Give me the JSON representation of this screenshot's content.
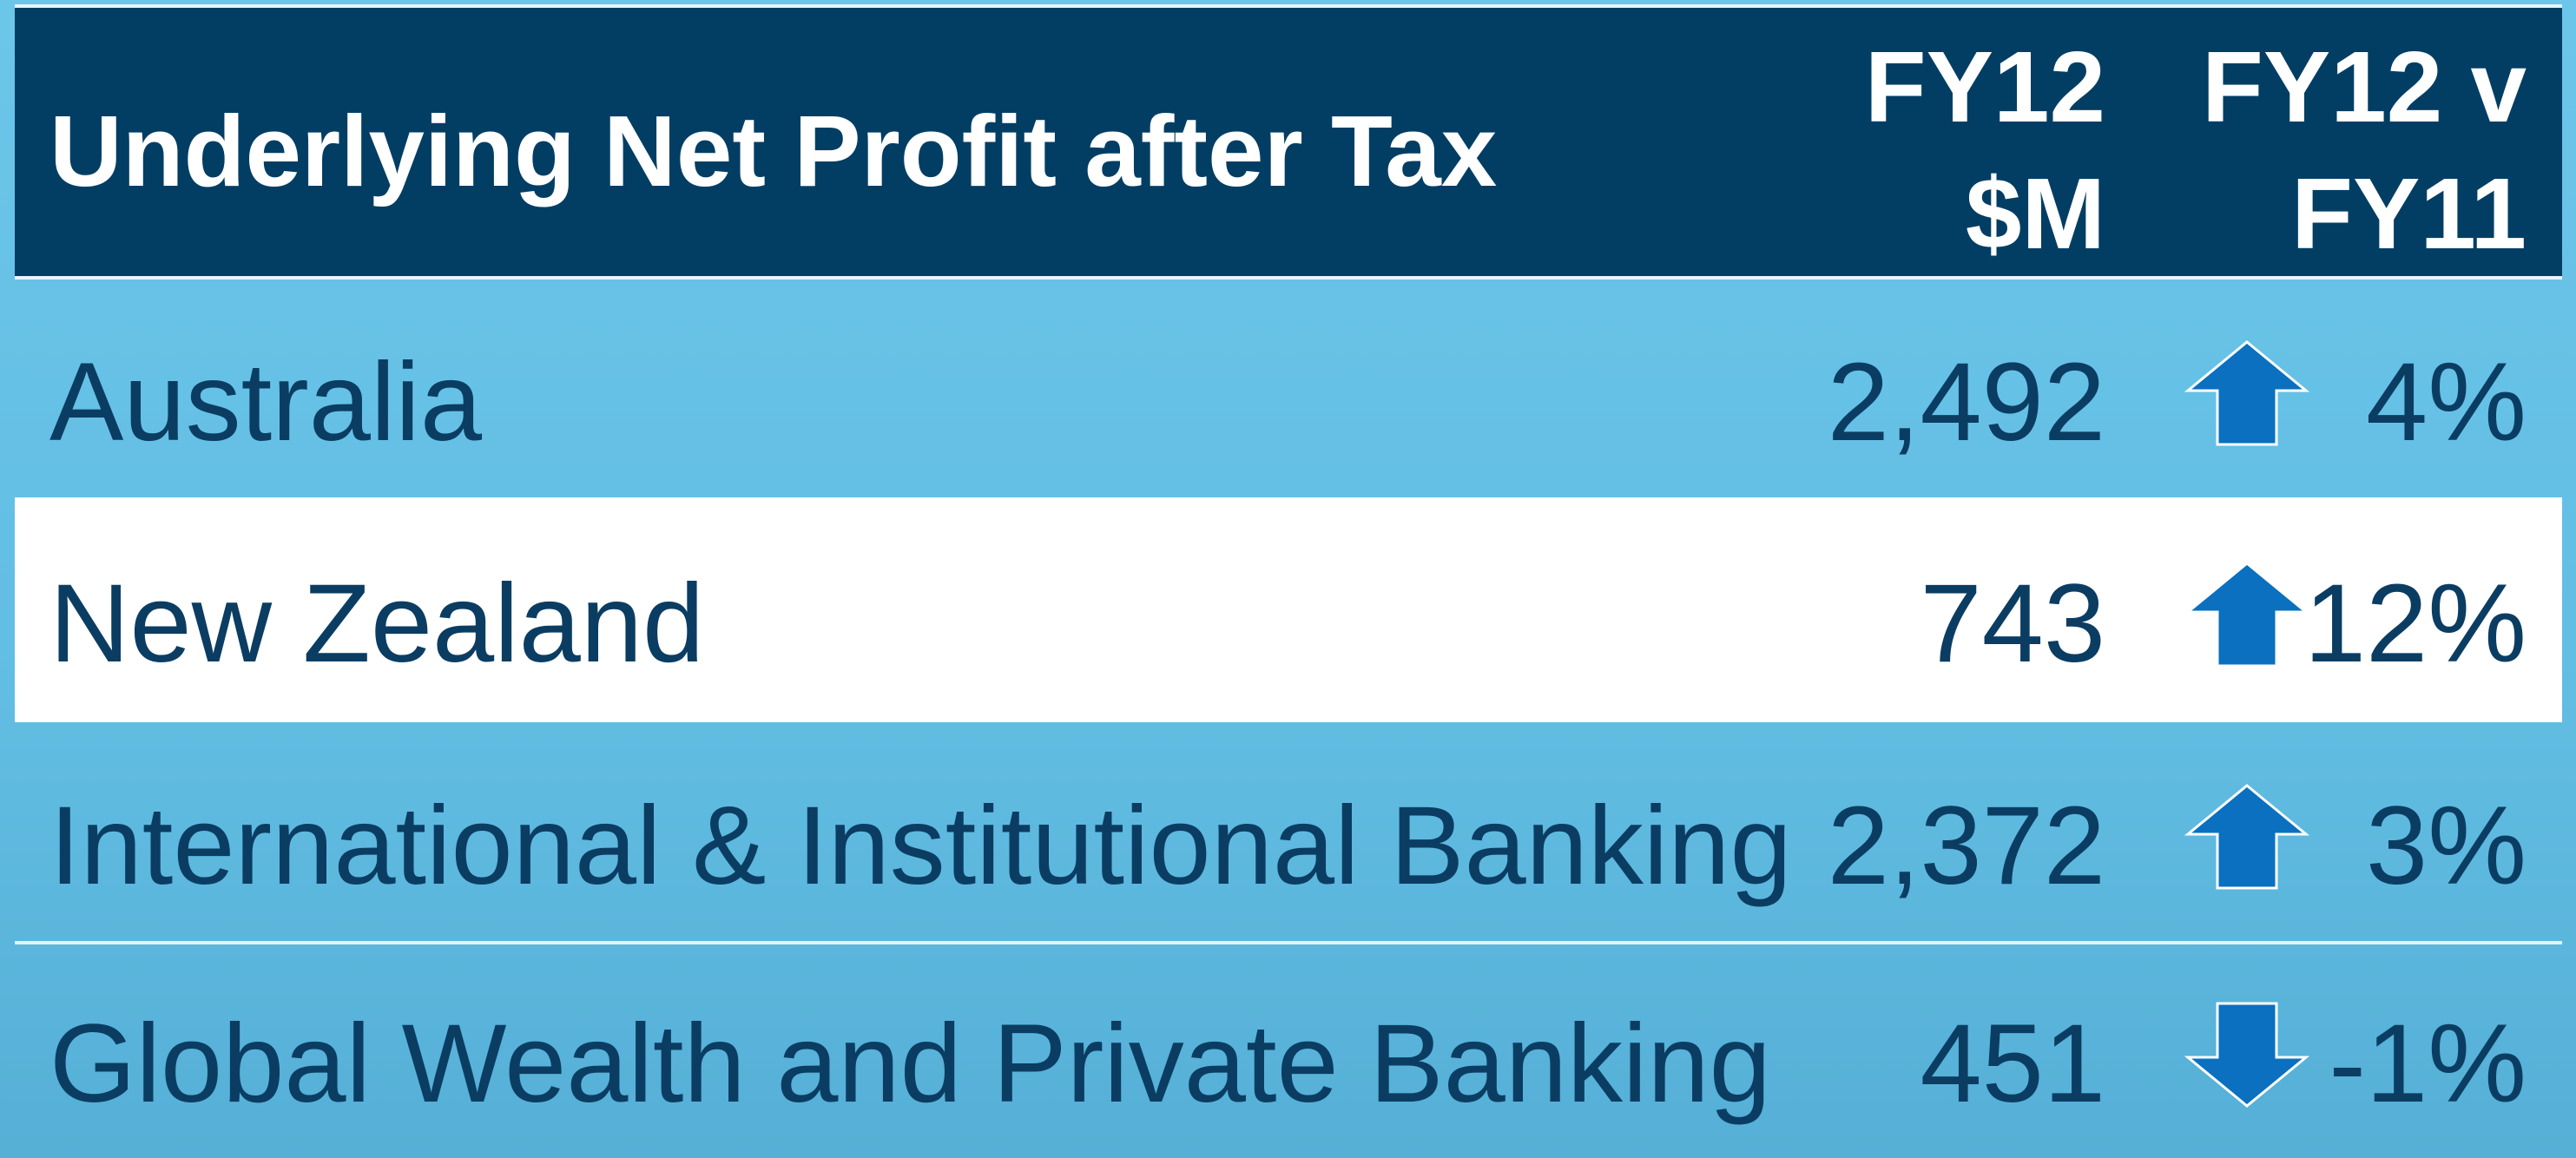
{
  "table": {
    "header": {
      "title": "Underlying Net Profit after Tax",
      "columns": [
        [
          "FY12",
          "$M"
        ],
        [
          "FY12 v",
          "FY11"
        ]
      ]
    },
    "rows": [
      {
        "label": "Australia",
        "value": "2,492",
        "change": "4%"
      },
      {
        "label": "New Zealand",
        "value": "743",
        "change": "12%"
      },
      {
        "label": "International & Institutional Banking",
        "value": "2,372",
        "change": "3%"
      },
      {
        "label": "Global Wealth and Private Banking",
        "value": "451",
        "change": "-1%"
      }
    ]
  }
}
